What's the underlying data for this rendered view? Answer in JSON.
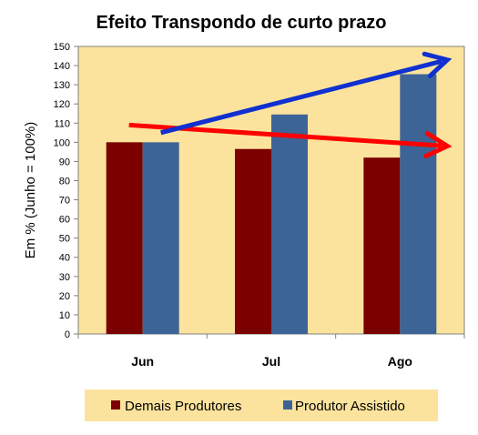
{
  "chart_data": {
    "type": "bar",
    "title": "Efeito Transpondo de curto prazo",
    "xlabel": "",
    "ylabel": "Em % (Junho = 100%)",
    "categories": [
      "Jun",
      "Jul",
      "Ago"
    ],
    "series": [
      {
        "name": "Demais Produtores",
        "values": [
          100,
          96.5,
          92
        ],
        "color": "#7b0000"
      },
      {
        "name": "Produtor Assistido",
        "values": [
          100,
          114.5,
          135.5
        ],
        "color": "#3d6496"
      }
    ],
    "ylim": [
      0,
      150
    ],
    "yticks": [
      0,
      10,
      20,
      30,
      40,
      50,
      60,
      70,
      80,
      90,
      100,
      110,
      120,
      130,
      140,
      150
    ],
    "grid": false,
    "plot_background": "#fbe39d",
    "legend": {
      "placement": "bottom",
      "background": "#fbe39d"
    },
    "annotations": [
      {
        "type": "arrow",
        "color": "#ff0000",
        "meaning": "downward trend",
        "from": {
          "x": "Jun",
          "y": 109
        },
        "to": {
          "x": "Ago",
          "y": 98
        }
      },
      {
        "type": "arrow",
        "color": "#1030d0",
        "meaning": "upward trend",
        "from": {
          "x": "Jun",
          "y": 105
        },
        "to": {
          "x": "Ago",
          "y": 143
        }
      }
    ]
  }
}
